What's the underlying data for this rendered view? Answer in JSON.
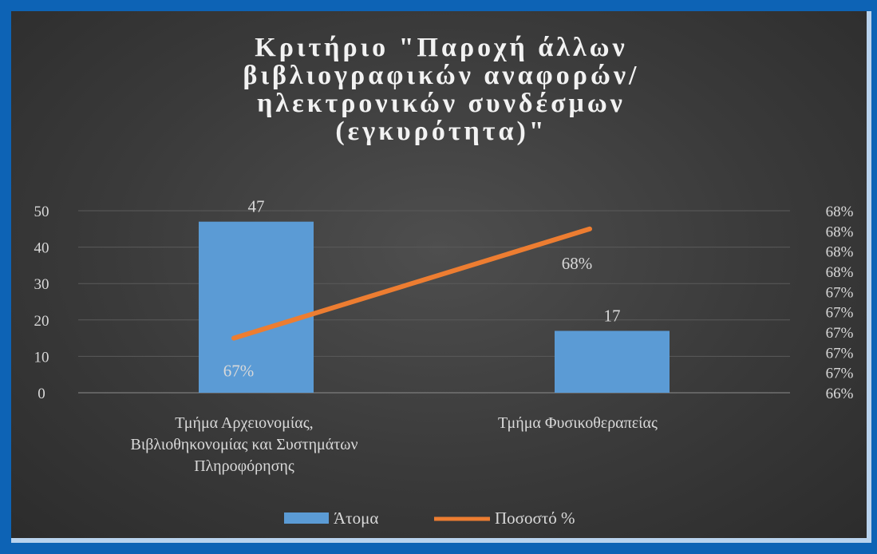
{
  "chart_data": {
    "type": "bar",
    "title_lines": [
      "Κριτήριο \"Παροχή άλλων",
      "βιβλιογραφικών αναφορών/",
      "ηλεκτρονικών συνδέσμων",
      "(εγκυρότητα)\""
    ],
    "categories": [
      [
        "Τμήμα Αρχειονομίας,",
        "Βιβλιοθηκονομίας και Συστημάτων",
        "Πληροφόρησης"
      ],
      [
        "Τμήμα Φυσικοθεραπείας"
      ]
    ],
    "series": [
      {
        "name": "Άτομα",
        "kind": "bar",
        "axis": "left",
        "values": [
          47,
          17
        ],
        "labels": [
          "47",
          "17"
        ],
        "color": "#5b9bd5"
      },
      {
        "name": "Ποσοστό %",
        "kind": "line",
        "axis": "right",
        "values": [
          66.6,
          67.8
        ],
        "labels": [
          "67%",
          "68%"
        ],
        "color": "#ed7d31"
      }
    ],
    "y_left": {
      "min": 0,
      "max": 50,
      "ticks": [
        "0",
        "10",
        "20",
        "30",
        "40",
        "50"
      ]
    },
    "y_right": {
      "min": 66.0,
      "max": 68.0,
      "ticks": [
        "66%",
        "67%",
        "67%",
        "67%",
        "67%",
        "67%",
        "68%",
        "68%",
        "68%",
        "68%"
      ]
    },
    "grid": true,
    "legend": "bottom"
  }
}
